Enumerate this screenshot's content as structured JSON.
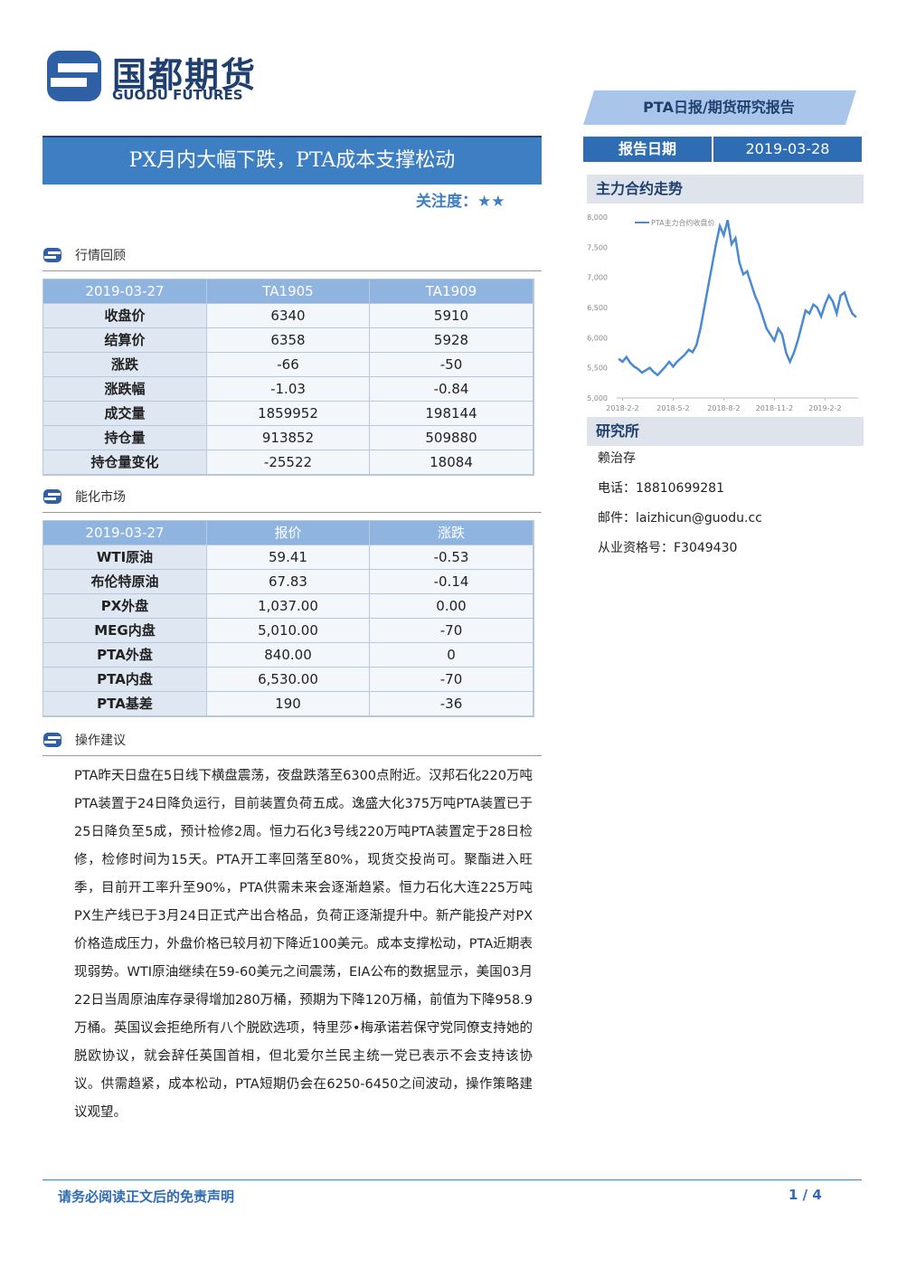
{
  "header": {
    "logo_cn": "国都期货",
    "logo_en": "GUODU FUTURES",
    "banner": "PTA日报/期货研究报告"
  },
  "title": "PX月内大幅下跌，PTA成本支撑松动",
  "attention": "关注度：★★",
  "report_date": {
    "label": "报告日期",
    "value": "2019-03-28"
  },
  "sections": [
    {
      "heading": "行情回顾",
      "table": {
        "header": [
          "2019-03-27",
          "TA1905",
          "TA1909"
        ],
        "rows": [
          [
            "收盘价",
            "6340",
            "5910"
          ],
          [
            "结算价",
            "6358",
            "5928"
          ],
          [
            "涨跌",
            "-66",
            "-50"
          ],
          [
            "涨跌幅",
            "-1.03",
            "-0.84"
          ],
          [
            "成交量",
            "1859952",
            "198144"
          ],
          [
            "持仓量",
            "913852",
            "509880"
          ],
          [
            "持仓量变化",
            "-25522",
            "18084"
          ]
        ]
      }
    },
    {
      "heading": "能化市场",
      "table": {
        "header": [
          "2019-03-27",
          "报价",
          "涨跌"
        ],
        "rows": [
          [
            "WTI原油",
            "59.41",
            "-0.53"
          ],
          [
            "布伦特原油",
            "67.83",
            "-0.14"
          ],
          [
            "PX外盘",
            "1,037.00",
            "0.00"
          ],
          [
            "MEG内盘",
            "5,010.00",
            "-70"
          ],
          [
            "PTA外盘",
            "840.00",
            "0"
          ],
          [
            "PTA内盘",
            "6,530.00",
            "-70"
          ],
          [
            "PTA基差",
            "190",
            "-36"
          ]
        ]
      }
    }
  ],
  "advice": {
    "heading": "操作建议",
    "text": "PTA昨天日盘在5日线下横盘震荡，夜盘跌落至6300点附近。汉邦石化220万吨PTA装置于24日降负运行，目前装置负荷五成。逸盛大化375万吨PTA装置已于25日降负至5成，预计检修2周。恒力石化3号线220万吨PTA装置定于28日检修，检修时间为15天。PTA开工率回落至80%，现货交投尚可。聚酯进入旺季，目前开工率升至90%，PTA供需未来会逐渐趋紧。恒力石化大连225万吨PX生产线已于3月24日正式产出合格品，负荷正逐渐提升中。新产能投产对PX价格造成压力，外盘价格已较月初下降近100美元。成本支撑松动，PTA近期表现弱势。WTI原油继续在59-60美元之间震荡，EIA公布的数据显示，美国03月22日当周原油库存录得增加280万桶，预期为下降120万桶，前值为下降958.9万桶。英国议会拒绝所有八个脱欧选项，特里莎•梅承诺若保守党同僚支持她的脱欧协议，就会辞任英国首相，但北爱尔兰民主统一党已表示不会支持该协议。供需趋紧，成本松动，PTA短期仍会在6250-6450之间波动，操作策略建议观望。"
  },
  "chart_heading": "主力合约走势",
  "chart_data": {
    "type": "line",
    "categories": [
      null,
      "2018-2-2",
      null,
      null,
      null,
      null,
      null,
      null,
      null,
      null,
      null,
      null,
      null,
      null,
      "2018-5-2",
      null,
      null,
      null,
      null,
      null,
      null,
      null,
      null,
      null,
      null,
      null,
      null,
      "2018-8-2",
      null,
      null,
      null,
      null,
      null,
      null,
      null,
      null,
      null,
      null,
      null,
      null,
      "2018-11-2",
      null,
      null,
      null,
      null,
      null,
      null,
      null,
      null,
      null,
      null,
      null,
      null,
      "2019-2-2",
      null,
      null,
      null,
      null,
      null,
      null,
      null,
      null
    ],
    "series": [
      {
        "name": "PTA主力合约收盘价",
        "color": "#4a8ad0",
        "values": [
          5650,
          5600,
          5680,
          5580,
          5520,
          5480,
          5420,
          5460,
          5500,
          5430,
          5380,
          5450,
          5520,
          5600,
          5520,
          5600,
          5660,
          5720,
          5800,
          5760,
          5880,
          6150,
          6500,
          6850,
          7200,
          7550,
          7850,
          7700,
          7950,
          7550,
          7650,
          7250,
          7050,
          7100,
          6900,
          6700,
          6550,
          6350,
          6150,
          6050,
          5950,
          6150,
          6050,
          5750,
          5600,
          5750,
          5950,
          6200,
          6450,
          6400,
          6550,
          6500,
          6350,
          6550,
          6700,
          6600,
          6400,
          6700,
          6750,
          6550,
          6400,
          6340
        ]
      }
    ],
    "ylim": [
      5000,
      8000
    ],
    "yticks": [
      {
        "value": 5000,
        "label": "5,000"
      },
      {
        "value": 5500,
        "label": "5,500"
      },
      {
        "value": 6000,
        "label": "6,000"
      },
      {
        "value": 6500,
        "label": "6,500"
      },
      {
        "value": 7000,
        "label": "7,000"
      },
      {
        "value": 7500,
        "label": "7,500"
      },
      {
        "value": 8000,
        "label": "8,000"
      }
    ],
    "grid": false,
    "legend": "upper left"
  },
  "research": {
    "heading": "研究所",
    "lines": [
      "赖治存",
      "电话：18810699281",
      "邮件：laizhicun@guodu.cc",
      "从业资格号：F3049430"
    ]
  },
  "footer": {
    "disclaimer": "请务必阅读正文后的免责声明",
    "page": "1 / 4"
  }
}
